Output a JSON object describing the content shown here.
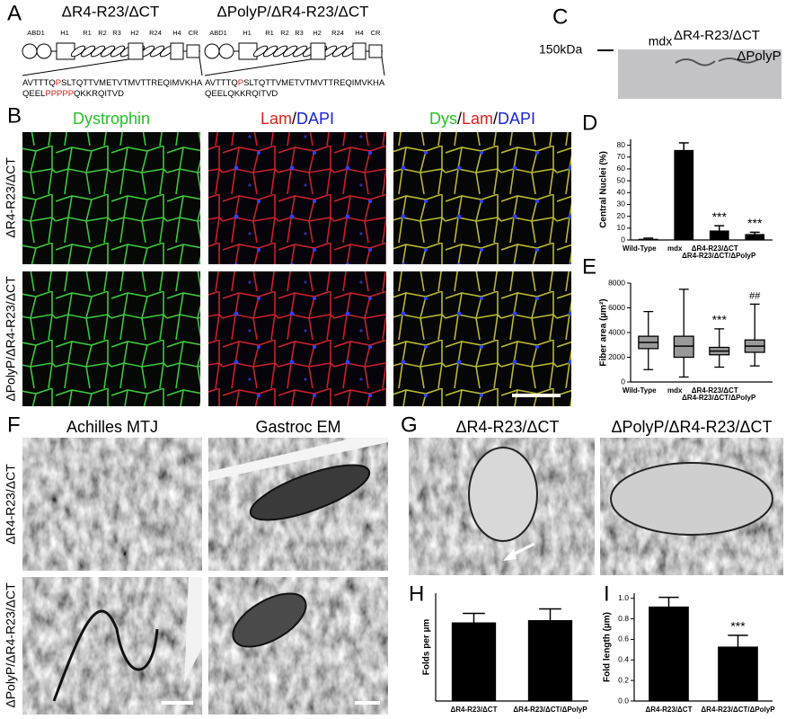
{
  "panel_a": {
    "label": "A",
    "constructs": [
      {
        "name": "ΔR4-R23/ΔCT",
        "domains": [
          "ABD1",
          "H1",
          "R1",
          "R2",
          "R3",
          "H2",
          "R24",
          "H4",
          "CR"
        ],
        "sequence_lines": [
          [
            "AVTTTQ",
            "P",
            "SLTQTTVMETVTMVTTREQIMVKHA"
          ],
          [
            "QEEL",
            "PPPPP",
            "QKKRQITVD"
          ]
        ]
      },
      {
        "name": "ΔPolyP/ΔR4-R23/ΔCT",
        "domains": [
          "ABD1",
          "H1",
          "R1",
          "R2",
          "R3",
          "H2",
          "R24",
          "H4",
          "CR"
        ],
        "sequence_lines": [
          [
            "AVTTTQ",
            "P",
            "SLTQTTVMETVTMVTTREQIMVKHA"
          ],
          [
            "QEELQKKRQITVD"
          ]
        ]
      }
    ]
  },
  "panel_b": {
    "label": "B",
    "columns": [
      [
        {
          "text": "Dystrophin",
          "color": "#22c322"
        }
      ],
      [
        {
          "text": "Lam",
          "color": "#e0201c"
        },
        {
          "text": "/",
          "color": "#000000"
        },
        {
          "text": "DAPI",
          "color": "#1a22d8"
        }
      ],
      [
        {
          "text": "Dys",
          "color": "#22c322"
        },
        {
          "text": "/",
          "color": "#000000"
        },
        {
          "text": "Lam",
          "color": "#e0201c"
        },
        {
          "text": "/",
          "color": "#000000"
        },
        {
          "text": "DAPI",
          "color": "#1a22d8"
        }
      ]
    ],
    "rows": [
      "ΔR4-R23/ΔCT",
      "ΔPolyP/ΔR4-R23/ΔCT"
    ]
  },
  "panel_c": {
    "label": "C",
    "marker": "150kDa",
    "lanes": [
      "mdx",
      "ΔR4-R23/ΔCT",
      "ΔPolyP"
    ]
  },
  "panel_f": {
    "label": "F",
    "columns": [
      "Achilles MTJ",
      "Gastroc EM"
    ],
    "rows": [
      "ΔR4-R23/ΔCT",
      "ΔPolyP/ΔR4-R23/ΔCT"
    ]
  },
  "panel_g": {
    "label": "G",
    "columns": [
      "ΔR4-R23/ΔCT",
      "ΔPolyP/ΔR4-R23/ΔCT"
    ]
  },
  "chart_data": [
    {
      "type": "bar",
      "label": "D",
      "y_label": "Central Nuclei (%)",
      "categories": [
        "Wild-Type",
        "mdx",
        "ΔR4-R23/ΔCT",
        "ΔR4-R23/ΔCT/ΔPolyP"
      ],
      "values": [
        1,
        76,
        8,
        5
      ],
      "errors": [
        0.5,
        6,
        4,
        1.5
      ],
      "bar_labels": [
        null,
        null,
        "***",
        "***"
      ],
      "color": "#000000",
      "ylim": [
        0,
        85
      ],
      "yticks": [
        0,
        10,
        20,
        30,
        40,
        50,
        60,
        70,
        80
      ]
    },
    {
      "type": "box",
      "label": "E",
      "y_label": "Fiber area (µm²)",
      "categories": [
        "Wild-Type",
        "mdx",
        "ΔR4-R23/ΔCT",
        "ΔR4-R23/ΔCT/ΔPolyP"
      ],
      "boxes": [
        {
          "min": 1000,
          "q1": 2700,
          "median": 3200,
          "q3": 3700,
          "max": 5700
        },
        {
          "min": 400,
          "q1": 2000,
          "median": 2900,
          "q3": 3700,
          "max": 7500
        },
        {
          "min": 1200,
          "q1": 2200,
          "median": 2500,
          "q3": 2800,
          "max": 4300
        },
        {
          "min": 1300,
          "q1": 2400,
          "median": 2900,
          "q3": 3400,
          "max": 6300
        }
      ],
      "bar_labels": [
        null,
        null,
        "***",
        "##"
      ],
      "color": "#999999",
      "ylim": [
        0,
        8000
      ],
      "yticks": [
        0,
        2000,
        4000,
        6000,
        8000
      ]
    },
    {
      "type": "bar",
      "label": "H",
      "y_label": "Folds per µm",
      "categories": [
        "ΔR4-R23/ΔCT",
        "ΔR4-R23/ΔCT/ΔPolyP"
      ],
      "values": [
        1.75,
        1.8
      ],
      "errors": [
        0.2,
        0.25
      ],
      "color": "#000000",
      "ylim": [
        0,
        2.4
      ]
    },
    {
      "type": "bar",
      "label": "I",
      "y_label": "Fold length (µm)",
      "categories": [
        "ΔR4-R23/ΔCT",
        "ΔR4-R23/ΔCT/ΔPolyP"
      ],
      "values": [
        0.92,
        0.53
      ],
      "errors": [
        0.09,
        0.11
      ],
      "bar_labels": [
        null,
        "***"
      ],
      "color": "#000000",
      "ylim": [
        0,
        1.05
      ],
      "yticks": [
        {
          "value": 0,
          "label": "0.0"
        },
        0.2,
        0.4,
        0.6,
        0.8,
        {
          "value": 1,
          "label": "1.0"
        }
      ]
    }
  ]
}
